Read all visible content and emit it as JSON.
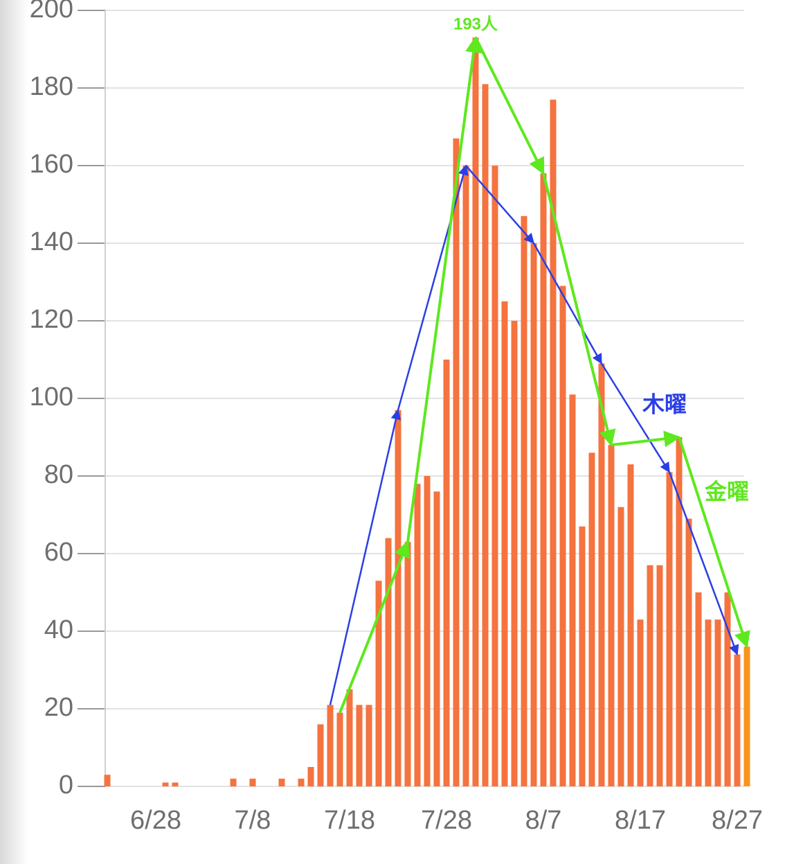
{
  "chart_data": {
    "type": "bar",
    "categories": [
      null,
      null,
      null,
      null,
      null,
      "6/28",
      null,
      null,
      null,
      null,
      null,
      null,
      null,
      null,
      null,
      "7/8",
      null,
      null,
      null,
      null,
      null,
      null,
      null,
      null,
      null,
      "7/18",
      null,
      null,
      null,
      null,
      null,
      null,
      null,
      null,
      null,
      "7/28",
      null,
      null,
      null,
      null,
      null,
      null,
      null,
      null,
      null,
      "8/7",
      null,
      null,
      null,
      null,
      null,
      null,
      null,
      null,
      null,
      "8/17",
      null,
      null,
      null,
      null,
      null,
      null,
      null,
      null,
      null,
      "8/27",
      null
    ],
    "values": [
      3,
      0,
      0,
      0,
      0,
      0,
      1,
      1,
      0,
      0,
      0,
      0,
      0,
      2,
      0,
      2,
      0,
      0,
      2,
      0,
      2,
      5,
      16,
      21,
      19,
      25,
      21,
      21,
      53,
      64,
      97,
      63,
      78,
      80,
      76,
      110,
      167,
      160,
      193,
      181,
      160,
      125,
      120,
      147,
      140,
      158,
      177,
      129,
      101,
      67,
      86,
      109,
      88,
      72,
      83,
      43,
      57,
      57,
      81,
      90,
      69,
      50,
      43,
      43,
      50,
      34,
      36
    ],
    "color": "#f4733f",
    "last_color": "#f7941d",
    "ylim": [
      0,
      200
    ],
    "yticks": [
      0,
      20,
      40,
      60,
      80,
      100,
      120,
      140,
      160,
      180,
      200
    ],
    "grid": true,
    "peak_label": "193人",
    "annotations": [
      {
        "text": "木曜",
        "color": "#2a3ee6"
      },
      {
        "text": "金曜",
        "color": "#5ee81e"
      }
    ]
  }
}
